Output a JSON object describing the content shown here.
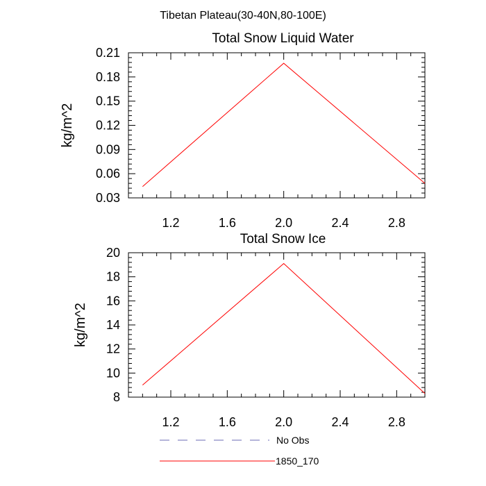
{
  "figure_title": "Tibetan Plateau(30-40N,80-100E)",
  "legend": [
    {
      "label": "No Obs",
      "color": "#6b6bb5",
      "dash": "dashed"
    },
    {
      "label": "1850_170",
      "color": "#ff0000",
      "dash": "solid"
    }
  ],
  "chart_data": [
    {
      "type": "line",
      "title": "Total Snow Liquid Water",
      "xlabel": "",
      "ylabel": "kg/m^2",
      "xlim": [
        0.9,
        3.0
      ],
      "ylim": [
        0.03,
        0.21
      ],
      "xticks": [
        1.2,
        1.6,
        2.0,
        2.4,
        2.8
      ],
      "xtick_labels": [
        "1.2",
        "1.6",
        "2.0",
        "2.4",
        "2.8"
      ],
      "yticks": [
        0.03,
        0.06,
        0.09,
        0.12,
        0.15,
        0.18,
        0.21
      ],
      "ytick_labels": [
        "0.03",
        "0.06",
        "0.09",
        "0.12",
        "0.15",
        "0.18",
        "0.21"
      ],
      "grid": false,
      "series": [
        {
          "name": "1850_170",
          "color": "#ff0000",
          "x": [
            1,
            2,
            3
          ],
          "y": [
            0.044,
            0.197,
            0.048
          ]
        }
      ]
    },
    {
      "type": "line",
      "title": "Total Snow Ice",
      "xlabel": "",
      "ylabel": "kg/m^2",
      "xlim": [
        0.9,
        3.0
      ],
      "ylim": [
        8,
        20
      ],
      "xticks": [
        1.2,
        1.6,
        2.0,
        2.4,
        2.8
      ],
      "xtick_labels": [
        "1.2",
        "1.6",
        "2.0",
        "2.4",
        "2.8"
      ],
      "yticks": [
        8,
        10,
        12,
        14,
        16,
        18,
        20
      ],
      "ytick_labels": [
        "8",
        "10",
        "12",
        "14",
        "16",
        "18",
        "20"
      ],
      "grid": false,
      "series": [
        {
          "name": "1850_170",
          "color": "#ff0000",
          "x": [
            1,
            2,
            3
          ],
          "y": [
            9.0,
            19.1,
            8.3
          ]
        }
      ]
    }
  ]
}
